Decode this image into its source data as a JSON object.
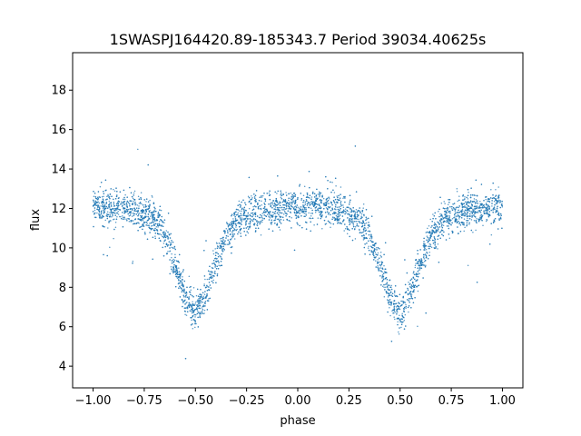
{
  "chart_data": {
    "type": "scatter",
    "title": "1SWASPJ164420.89-185343.7 Period 39034.40625s",
    "xlabel": "phase",
    "ylabel": "flux",
    "xlim": [
      -1.1,
      1.1
    ],
    "ylim": [
      2.9,
      19.9
    ],
    "xticks": [
      -1.0,
      -0.75,
      -0.5,
      -0.25,
      0.0,
      0.25,
      0.5,
      0.75,
      1.0
    ],
    "xtick_labels": [
      "−1.00",
      "−0.75",
      "−0.50",
      "−0.25",
      "0.00",
      "0.25",
      "0.50",
      "0.75",
      "1.00"
    ],
    "yticks": [
      4,
      6,
      8,
      10,
      12,
      14,
      16,
      18
    ],
    "ytick_labels": [
      "4",
      "6",
      "8",
      "10",
      "12",
      "14",
      "16",
      "18"
    ],
    "grid": false,
    "color": "#1f77b4",
    "series": [
      {
        "profile_phase": [
          -1.0,
          -0.9,
          -0.8,
          -0.7,
          -0.65,
          -0.6,
          -0.55,
          -0.5,
          -0.45,
          -0.4,
          -0.35,
          -0.3,
          -0.2,
          -0.1,
          0.0,
          0.1,
          0.2,
          0.3,
          0.35,
          0.4,
          0.45,
          0.5,
          0.55,
          0.6,
          0.65,
          0.7,
          0.8,
          0.9,
          1.0
        ],
        "profile_flux": [
          12.1,
          12.1,
          11.9,
          11.5,
          10.7,
          9.2,
          7.6,
          6.6,
          7.6,
          9.3,
          10.6,
          11.3,
          11.8,
          12.0,
          12.1,
          12.1,
          11.9,
          11.5,
          10.7,
          9.2,
          7.6,
          6.6,
          7.6,
          9.3,
          10.6,
          11.3,
          11.8,
          12.0,
          12.1
        ],
        "scatter_sigma": 0.45
      }
    ]
  }
}
